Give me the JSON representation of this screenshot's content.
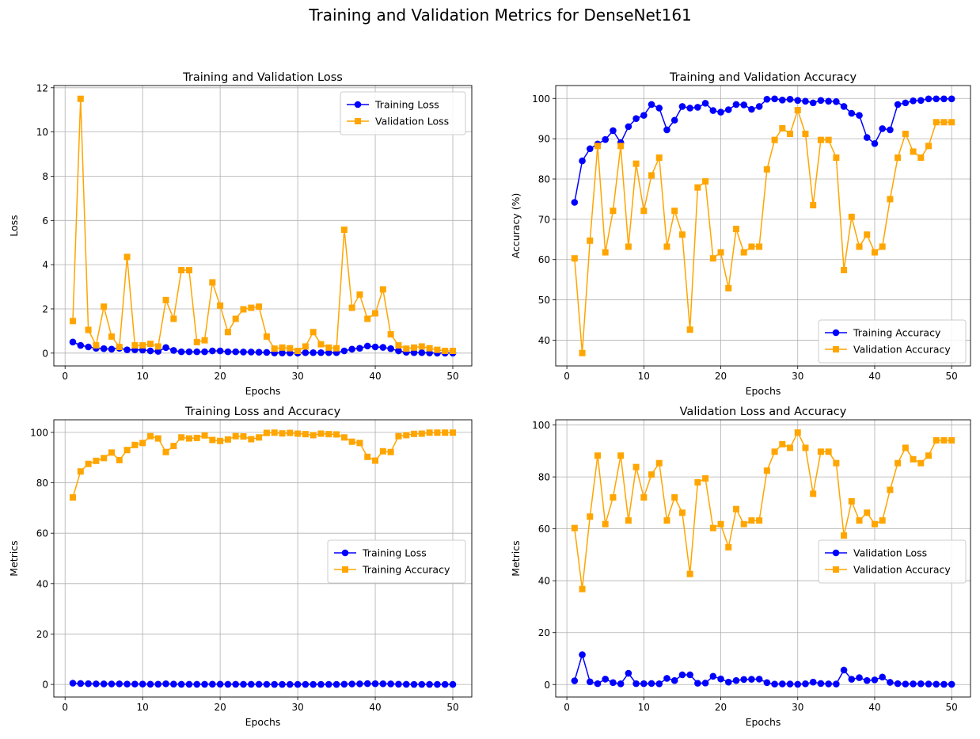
{
  "figure": {
    "suptitle": "Training and Validation Metrics for DenseNet161"
  },
  "colors": {
    "training": "#0000ff",
    "validation": "#ffa500",
    "grid": "#b0b0b0"
  },
  "chart_data": [
    {
      "type": "line",
      "title": "Training and Validation Loss",
      "xlabel": "Epochs",
      "ylabel": "Loss",
      "xlim": [
        -1.45,
        52.45
      ],
      "ylim": [
        -0.58,
        12.1
      ],
      "xticks": [
        0,
        10,
        20,
        30,
        40,
        50
      ],
      "yticks": [
        0,
        2,
        4,
        6,
        8,
        10,
        12
      ],
      "grid": true,
      "legend": "upper right",
      "series": [
        {
          "name": "Training Loss",
          "color": "#0000ff",
          "marker": "circle",
          "values": [
            0.5,
            0.35,
            0.28,
            0.22,
            0.2,
            0.18,
            0.22,
            0.15,
            0.15,
            0.14,
            0.1,
            0.08,
            0.25,
            0.12,
            0.06,
            0.06,
            0.06,
            0.06,
            0.1,
            0.1,
            0.06,
            0.06,
            0.05,
            0.05,
            0.04,
            0.03,
            0.01,
            0.01,
            0.01,
            0.0,
            0.02,
            0.02,
            0.02,
            0.02,
            0.02,
            0.1,
            0.18,
            0.22,
            0.32,
            0.28,
            0.26,
            0.2,
            0.1,
            0.04,
            0.02,
            0.02,
            0.01,
            0.0,
            0.0,
            0.0
          ]
        },
        {
          "name": "Validation Loss",
          "color": "#ffa500",
          "marker": "square",
          "values": [
            1.45,
            11.5,
            1.05,
            0.35,
            2.1,
            0.75,
            0.28,
            4.35,
            0.35,
            0.35,
            0.42,
            0.3,
            2.4,
            1.55,
            3.75,
            3.75,
            0.5,
            0.58,
            3.2,
            2.15,
            0.95,
            1.55,
            1.98,
            2.05,
            2.1,
            0.75,
            0.2,
            0.25,
            0.22,
            0.1,
            0.3,
            0.95,
            0.4,
            0.25,
            0.22,
            5.58,
            2.05,
            2.65,
            1.55,
            1.8,
            2.88,
            0.85,
            0.35,
            0.2,
            0.25,
            0.3,
            0.22,
            0.15,
            0.1,
            0.1
          ]
        }
      ]
    },
    {
      "type": "line",
      "title": "Training and Validation Accuracy",
      "xlabel": "Epochs",
      "ylabel": "Accuracy (%)",
      "xlim": [
        -1.45,
        52.45
      ],
      "ylim": [
        33.6,
        103.2
      ],
      "xticks": [
        0,
        10,
        20,
        30,
        40,
        50
      ],
      "yticks": [
        40,
        50,
        60,
        70,
        80,
        90,
        100
      ],
      "grid": true,
      "legend": "lower right",
      "series": [
        {
          "name": "Training Accuracy",
          "color": "#0000ff",
          "marker": "circle",
          "values": [
            74.2,
            84.5,
            87.5,
            88.7,
            89.8,
            92.0,
            89.0,
            93.0,
            95.0,
            95.8,
            98.5,
            97.6,
            92.2,
            94.6,
            98.0,
            97.6,
            97.8,
            98.8,
            97.0,
            96.6,
            97.2,
            98.5,
            98.4,
            97.3,
            98.0,
            99.8,
            99.9,
            99.6,
            99.8,
            99.5,
            99.3,
            98.9,
            99.5,
            99.3,
            99.2,
            98.0,
            96.3,
            95.8,
            90.3,
            88.8,
            92.5,
            92.2,
            98.5,
            98.9,
            99.4,
            99.5,
            99.9,
            99.9,
            99.9,
            99.9
          ]
        },
        {
          "name": "Validation Accuracy",
          "color": "#ffa500",
          "marker": "square",
          "values": [
            60.3,
            36.8,
            64.7,
            88.2,
            61.8,
            72.1,
            88.2,
            63.2,
            83.8,
            72.1,
            80.9,
            85.3,
            63.2,
            72.1,
            66.2,
            42.6,
            77.9,
            79.4,
            60.3,
            61.8,
            52.9,
            67.6,
            61.8,
            63.2,
            63.2,
            82.4,
            89.7,
            92.6,
            91.2,
            97.1,
            91.2,
            73.5,
            89.7,
            89.7,
            85.3,
            57.4,
            70.6,
            63.2,
            66.2,
            61.8,
            63.2,
            75.0,
            85.3,
            91.2,
            86.8,
            85.3,
            88.2,
            94.1,
            94.1,
            94.1
          ]
        }
      ]
    },
    {
      "type": "line",
      "title": "Training Loss and Accuracy",
      "xlabel": "Epochs",
      "ylabel": "Metrics",
      "xlim": [
        -1.45,
        52.45
      ],
      "ylim": [
        -5.0,
        105.0
      ],
      "xticks": [
        0,
        10,
        20,
        30,
        40,
        50
      ],
      "yticks": [
        0,
        20,
        40,
        60,
        80,
        100
      ],
      "grid": true,
      "legend": "center right",
      "series": [
        {
          "name": "Training Loss",
          "color": "#0000ff",
          "marker": "circle",
          "values": [
            0.5,
            0.35,
            0.28,
            0.22,
            0.2,
            0.18,
            0.22,
            0.15,
            0.15,
            0.14,
            0.1,
            0.08,
            0.25,
            0.12,
            0.06,
            0.06,
            0.06,
            0.06,
            0.1,
            0.1,
            0.06,
            0.06,
            0.05,
            0.05,
            0.04,
            0.03,
            0.01,
            0.01,
            0.01,
            0.0,
            0.02,
            0.02,
            0.02,
            0.02,
            0.02,
            0.1,
            0.18,
            0.22,
            0.32,
            0.28,
            0.26,
            0.2,
            0.1,
            0.04,
            0.02,
            0.02,
            0.01,
            0.0,
            0.0,
            0.0
          ]
        },
        {
          "name": "Training Accuracy",
          "color": "#ffa500",
          "marker": "square",
          "values": [
            74.2,
            84.5,
            87.5,
            88.7,
            89.8,
            92.0,
            89.0,
            93.0,
            95.0,
            95.8,
            98.5,
            97.6,
            92.2,
            94.6,
            98.0,
            97.6,
            97.8,
            98.8,
            97.0,
            96.6,
            97.2,
            98.5,
            98.4,
            97.3,
            98.0,
            99.8,
            99.9,
            99.6,
            99.8,
            99.5,
            99.3,
            98.9,
            99.5,
            99.3,
            99.2,
            98.0,
            96.3,
            95.8,
            90.3,
            88.8,
            92.5,
            92.2,
            98.5,
            98.9,
            99.4,
            99.5,
            99.9,
            99.9,
            99.9,
            99.9
          ]
        }
      ]
    },
    {
      "type": "line",
      "title": "Validation Loss and Accuracy",
      "xlabel": "Epochs",
      "ylabel": "Metrics",
      "xlim": [
        -1.45,
        52.45
      ],
      "ylim": [
        -4.8,
        102.0
      ],
      "xticks": [
        0,
        10,
        20,
        30,
        40,
        50
      ],
      "yticks": [
        0,
        20,
        40,
        60,
        80,
        100
      ],
      "grid": true,
      "legend": "center right",
      "series": [
        {
          "name": "Validation Loss",
          "color": "#0000ff",
          "marker": "circle",
          "values": [
            1.45,
            11.5,
            1.05,
            0.35,
            2.1,
            0.75,
            0.28,
            4.35,
            0.35,
            0.35,
            0.42,
            0.3,
            2.4,
            1.55,
            3.75,
            3.75,
            0.5,
            0.58,
            3.2,
            2.15,
            0.95,
            1.55,
            1.98,
            2.05,
            2.1,
            0.75,
            0.2,
            0.25,
            0.22,
            0.1,
            0.3,
            0.95,
            0.4,
            0.25,
            0.22,
            5.58,
            2.05,
            2.65,
            1.55,
            1.8,
            2.88,
            0.85,
            0.35,
            0.2,
            0.25,
            0.3,
            0.22,
            0.15,
            0.1,
            0.1
          ]
        },
        {
          "name": "Validation Accuracy",
          "color": "#ffa500",
          "marker": "square",
          "values": [
            60.3,
            36.8,
            64.7,
            88.2,
            61.8,
            72.1,
            88.2,
            63.2,
            83.8,
            72.1,
            80.9,
            85.3,
            63.2,
            72.1,
            66.2,
            42.6,
            77.9,
            79.4,
            60.3,
            61.8,
            52.9,
            67.6,
            61.8,
            63.2,
            63.2,
            82.4,
            89.7,
            92.6,
            91.2,
            97.1,
            91.2,
            73.5,
            89.7,
            89.7,
            85.3,
            57.4,
            70.6,
            63.2,
            66.2,
            61.8,
            63.2,
            75.0,
            85.3,
            91.2,
            86.8,
            85.3,
            88.2,
            94.1,
            94.1,
            94.1
          ]
        }
      ]
    }
  ]
}
